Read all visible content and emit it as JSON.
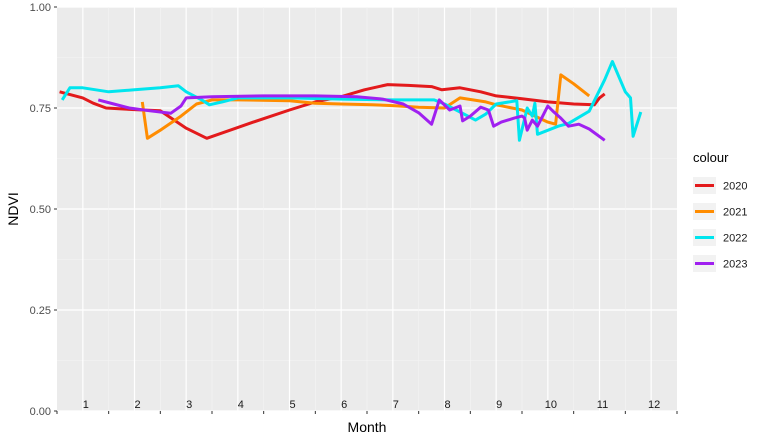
{
  "chart_data": {
    "type": "line",
    "title": "",
    "xlabel": "Month",
    "ylabel": "NDVI",
    "ylim": [
      0,
      1
    ],
    "xlim": [
      0.5,
      12.5
    ],
    "y_ticks": [
      "0.00",
      "0.25",
      "0.50",
      "0.75",
      "1.00"
    ],
    "y_tick_values": [
      0,
      0.25,
      0.5,
      0.75,
      1.0
    ],
    "x_tick_labels": [
      "1",
      "2",
      "3",
      "4",
      "5",
      "6",
      "7",
      "8",
      "9",
      "10",
      "11",
      "12"
    ],
    "x_tick_label_y": 0.017,
    "grid": true,
    "legend": {
      "title": "colour",
      "position": "right"
    },
    "series": [
      {
        "name": "2020",
        "color": "#e31a1c",
        "points": [
          [
            0.55,
            0.79
          ],
          [
            1.0,
            0.775
          ],
          [
            1.2,
            0.762
          ],
          [
            1.45,
            0.75
          ],
          [
            1.7,
            0.748
          ],
          [
            2.0,
            0.746
          ],
          [
            2.5,
            0.743
          ],
          [
            3.0,
            0.7
          ],
          [
            3.4,
            0.675
          ],
          [
            4.3,
            0.715
          ],
          [
            5.0,
            0.745
          ],
          [
            5.5,
            0.765
          ],
          [
            6.0,
            0.778
          ],
          [
            6.45,
            0.795
          ],
          [
            6.9,
            0.808
          ],
          [
            7.3,
            0.806
          ],
          [
            7.75,
            0.803
          ],
          [
            7.95,
            0.795
          ],
          [
            8.3,
            0.8
          ],
          [
            8.7,
            0.79
          ],
          [
            9.0,
            0.78
          ],
          [
            9.5,
            0.773
          ],
          [
            10.0,
            0.765
          ],
          [
            10.5,
            0.76
          ],
          [
            10.9,
            0.758
          ],
          [
            11.0,
            0.775
          ],
          [
            11.1,
            0.785
          ]
        ]
      },
      {
        "name": "2021",
        "color": "#ff8c00",
        "points": [
          [
            2.15,
            0.765
          ],
          [
            2.25,
            0.675
          ],
          [
            2.5,
            0.695
          ],
          [
            2.9,
            0.73
          ],
          [
            3.2,
            0.76
          ],
          [
            3.5,
            0.77
          ],
          [
            4.0,
            0.77
          ],
          [
            5.0,
            0.768
          ],
          [
            5.5,
            0.762
          ],
          [
            6.0,
            0.76
          ],
          [
            6.6,
            0.758
          ],
          [
            7.0,
            0.756
          ],
          [
            7.5,
            0.752
          ],
          [
            8.0,
            0.75
          ],
          [
            8.3,
            0.775
          ],
          [
            8.8,
            0.765
          ],
          [
            9.0,
            0.758
          ],
          [
            9.5,
            0.745
          ],
          [
            10.0,
            0.715
          ],
          [
            10.15,
            0.71
          ],
          [
            10.25,
            0.832
          ],
          [
            10.5,
            0.81
          ],
          [
            10.8,
            0.78
          ]
        ]
      },
      {
        "name": "2022",
        "color": "#00e5ee",
        "points": [
          [
            0.6,
            0.77
          ],
          [
            0.75,
            0.8
          ],
          [
            1.0,
            0.8
          ],
          [
            1.5,
            0.79
          ],
          [
            2.0,
            0.795
          ],
          [
            2.5,
            0.8
          ],
          [
            2.85,
            0.805
          ],
          [
            3.0,
            0.79
          ],
          [
            3.3,
            0.77
          ],
          [
            3.45,
            0.758
          ],
          [
            3.7,
            0.765
          ],
          [
            4.0,
            0.775
          ],
          [
            5.0,
            0.775
          ],
          [
            6.0,
            0.772
          ],
          [
            7.0,
            0.77
          ],
          [
            7.8,
            0.77
          ],
          [
            8.0,
            0.76
          ],
          [
            8.3,
            0.74
          ],
          [
            8.6,
            0.72
          ],
          [
            8.8,
            0.735
          ],
          [
            9.0,
            0.76
          ],
          [
            9.4,
            0.768
          ],
          [
            9.45,
            0.67
          ],
          [
            9.6,
            0.75
          ],
          [
            9.7,
            0.73
          ],
          [
            9.75,
            0.762
          ],
          [
            9.8,
            0.685
          ],
          [
            10.2,
            0.705
          ],
          [
            10.4,
            0.712
          ],
          [
            10.8,
            0.742
          ],
          [
            11.1,
            0.82
          ],
          [
            11.25,
            0.865
          ],
          [
            11.5,
            0.79
          ],
          [
            11.6,
            0.775
          ],
          [
            11.65,
            0.68
          ],
          [
            11.8,
            0.74
          ]
        ]
      },
      {
        "name": "2023",
        "color": "#a020f0",
        "points": [
          [
            1.3,
            0.77
          ],
          [
            1.6,
            0.76
          ],
          [
            1.9,
            0.75
          ],
          [
            2.3,
            0.743
          ],
          [
            2.7,
            0.737
          ],
          [
            2.9,
            0.755
          ],
          [
            3.0,
            0.775
          ],
          [
            3.5,
            0.778
          ],
          [
            4.5,
            0.78
          ],
          [
            5.5,
            0.78
          ],
          [
            6.3,
            0.778
          ],
          [
            6.8,
            0.772
          ],
          [
            7.2,
            0.76
          ],
          [
            7.5,
            0.738
          ],
          [
            7.75,
            0.71
          ],
          [
            7.9,
            0.77
          ],
          [
            8.1,
            0.745
          ],
          [
            8.3,
            0.755
          ],
          [
            8.35,
            0.718
          ],
          [
            8.5,
            0.73
          ],
          [
            8.7,
            0.752
          ],
          [
            8.85,
            0.745
          ],
          [
            8.95,
            0.705
          ],
          [
            9.1,
            0.715
          ],
          [
            9.35,
            0.725
          ],
          [
            9.5,
            0.73
          ],
          [
            9.55,
            0.725
          ],
          [
            9.6,
            0.695
          ],
          [
            9.7,
            0.72
          ],
          [
            9.8,
            0.705
          ],
          [
            9.9,
            0.73
          ],
          [
            10.0,
            0.755
          ],
          [
            10.1,
            0.742
          ],
          [
            10.25,
            0.725
          ],
          [
            10.4,
            0.705
          ],
          [
            10.6,
            0.71
          ],
          [
            10.8,
            0.698
          ],
          [
            11.1,
            0.67
          ]
        ]
      }
    ]
  }
}
